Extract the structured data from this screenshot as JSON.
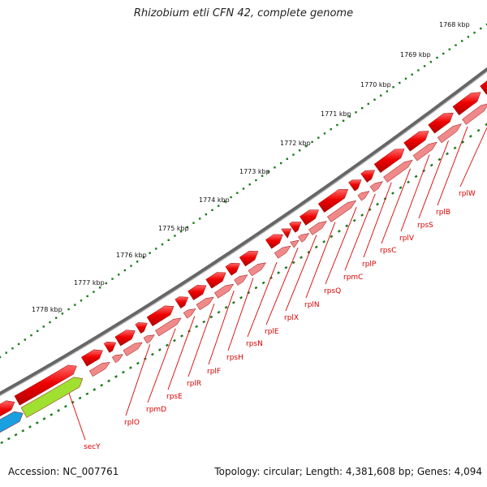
{
  "title": "Rhizobium etli CFN 42, complete genome",
  "footer": {
    "accession": "Accession: NC_007761",
    "summary": "Topology: circular; Length: 4,381,608 bp; Genes: 4,094"
  },
  "scale_labels": [
    "1768 kbp",
    "1769 kbp",
    "1770 kbp",
    "1771 kbp",
    "1772 kbp",
    "1773 kbp",
    "1774 kbp",
    "1775 kbp",
    "1776 kbp",
    "1777 kbp",
    "1778 kbp"
  ],
  "gene_labels": [
    "rplW",
    "rplB",
    "rpsS",
    "rplV",
    "rpsC",
    "rplP",
    "rpmC",
    "rpsQ",
    "rplN",
    "rplX",
    "rplE",
    "rpsN",
    "rpsH",
    "rplF",
    "rplR",
    "rpsE",
    "rpmD",
    "rplO",
    "secY"
  ],
  "colors": {
    "gene": "#ee0000",
    "gene_light": "#f08a8a",
    "backbone": "#777777",
    "tick": "#1a7a1a",
    "secY": "#9fe030",
    "other": "#1aa0e0",
    "label": "#dd0000"
  }
}
